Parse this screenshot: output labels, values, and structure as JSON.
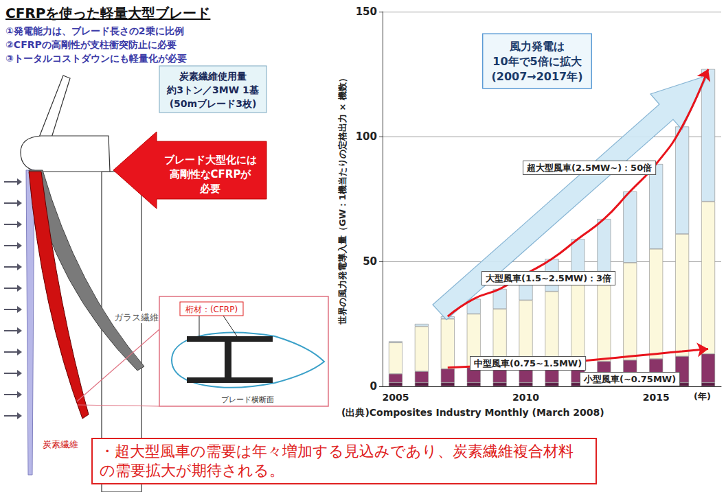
{
  "header": {
    "title": "CFRPを使った軽量大型ブレード",
    "points": [
      "①発電能力は、ブレード長さの2乗に比例",
      "②CFRPの高剛性が支柱衝突防止に必要",
      "③トータルコストダウンにも軽量化が必要"
    ]
  },
  "diagram": {
    "usage_box": [
      "炭素繊維使用量",
      "約3トン／3MW 1基",
      "(50mブレード3枚)"
    ],
    "callout": [
      "ブレード大型化には",
      "高剛性なCFRPが",
      "必要"
    ],
    "glass_label": "ガラス繊維",
    "carbon_label": "炭素繊維",
    "cross_section": {
      "spar_label": "桁材：(CFRP)",
      "caption": "ブレード横断面"
    }
  },
  "chart_data": {
    "type": "bar",
    "stacked": true,
    "categories": [
      "2005",
      null,
      null,
      null,
      null,
      "2010",
      null,
      null,
      null,
      null,
      "2015",
      null,
      null
    ],
    "series": [
      {
        "name": "小型風車(~0.75MW)",
        "color": "#5a1a42",
        "values": [
          1.5,
          1.5,
          1.5,
          1.5,
          1.5,
          1.5,
          1.5,
          1.5,
          1.5,
          1.5,
          1.5,
          1.5,
          1.5
        ]
      },
      {
        "name": "中型風車(0.75~1.5MW)",
        "color": "#8a3468",
        "values": [
          3.5,
          4.5,
          5.5,
          6,
          6.5,
          7,
          7.5,
          8,
          8.5,
          9,
          9.5,
          10.5,
          11.5
        ]
      },
      {
        "name": "大型風車(1.5~2.5MW)：3倍",
        "color": "#fcf8dc",
        "values": [
          12.5,
          18,
          20,
          21.5,
          23,
          26,
          29,
          32,
          36,
          39,
          44,
          49,
          61
        ]
      },
      {
        "name": "超大型風車(2.5MW~)：50倍",
        "color": "#d3e8f4",
        "values": [
          0.5,
          1,
          1,
          6,
          8,
          10.5,
          13,
          17.5,
          21,
          28.5,
          34,
          43,
          53
        ]
      },
      {
        "type": "line",
        "color": "#e8141c",
        "marker": "arrow",
        "values": [
          null,
          null,
          28,
          35,
          39,
          45,
          51,
          59,
          67,
          78,
          89,
          104,
          127
        ]
      },
      {
        "type": "line",
        "color": "#e8141c",
        "marker": "arrow",
        "values": [
          null,
          null,
          7.5,
          8,
          8.5,
          9,
          9.5,
          10,
          11,
          12,
          13,
          14,
          15
        ]
      }
    ],
    "ylabel": "世界の風力発電導入量（GW：1機当たりの定格出力 × 機数）",
    "xlabel": "(年)",
    "ylim": [
      0,
      150
    ],
    "yticks": [
      0,
      50,
      100,
      150
    ],
    "grid": true,
    "annotation": [
      "風力発電は",
      "10年で5倍に拡大",
      "(2007→2017年)"
    ],
    "source": "(出典)Composites Industry Monthly (March 2008)"
  },
  "conclusion": "・超大型風車の需要は年々増加する見込みであり、炭素繊維複合材料の需要拡大が期待される。"
}
